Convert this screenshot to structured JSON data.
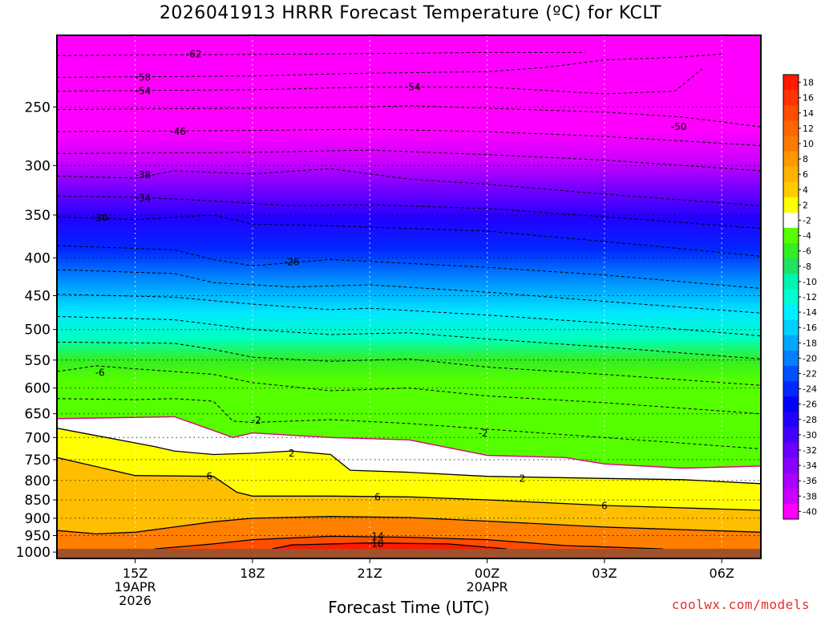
{
  "title": "2026041913 HRRR Forecast Temperature (ºC) for KCLT",
  "credit": "coolwx.com/models",
  "chart_data": {
    "type": "contour",
    "title": "2026041913 HRRR Forecast Temperature (ºC) for KCLT",
    "xlabel": "Forecast Time (UTC)",
    "ylabel": "",
    "variable": "Temperature (ºC)",
    "x_start_hour": 13,
    "x_end_hour": 31,
    "x_range_label": "2026-04-19 13Z to 2026-04-20 07Z",
    "x_ticks": [
      {
        "hour": 15,
        "label": "15Z",
        "sub1": "19APR",
        "sub2": "2026"
      },
      {
        "hour": 18,
        "label": "18Z",
        "sub1": "",
        "sub2": ""
      },
      {
        "hour": 21,
        "label": "21Z",
        "sub1": "",
        "sub2": ""
      },
      {
        "hour": 24,
        "label": "00Z",
        "sub1": "20APR",
        "sub2": ""
      },
      {
        "hour": 27,
        "label": "03Z",
        "sub1": "",
        "sub2": ""
      },
      {
        "hour": 30,
        "label": "06Z",
        "sub1": "",
        "sub2": ""
      }
    ],
    "y_ticks": [
      250,
      300,
      350,
      400,
      450,
      500,
      550,
      600,
      650,
      700,
      750,
      800,
      850,
      900,
      950,
      1000
    ],
    "y_range": [
      200,
      1020
    ],
    "y_log": true,
    "surface_pressure": 990,
    "grid": true,
    "colorbar": {
      "position": "right",
      "ticks": [
        18,
        16,
        14,
        12,
        10,
        8,
        6,
        4,
        2,
        -2,
        -4,
        -6,
        -8,
        -10,
        -12,
        -14,
        -16,
        -18,
        -20,
        -22,
        -24,
        -26,
        -28,
        -30,
        -32,
        -34,
        -36,
        -38,
        -40
      ],
      "colors_top_to_bottom": [
        "#ff1a00",
        "#ff3300",
        "#ff4d00",
        "#ff6600",
        "#ff7a00",
        "#ff9900",
        "#ffb300",
        "#ffcc00",
        "#ffff00",
        "#ffffff",
        "#55ff00",
        "#33ee22",
        "#22e066",
        "#00f5b0",
        "#00ffd0",
        "#00f0ff",
        "#00d0ff",
        "#00a8ff",
        "#0080ff",
        "#0050ff",
        "#0028ff",
        "#0000ff",
        "#2200ff",
        "#4400ff",
        "#6a00ff",
        "#8800ff",
        "#aa00ff",
        "#cc00ff",
        "#ff00ff"
      ]
    },
    "series": [
      {
        "name": "-62",
        "x": [
          13,
          20,
          24,
          26.5
        ],
        "y": [
          213,
          212,
          211,
          211
        ]
      },
      {
        "name": "-58",
        "x": [
          13,
          18,
          21,
          24,
          25.5,
          27,
          29,
          30
        ],
        "y": [
          228,
          227,
          225,
          224,
          221,
          216,
          214,
          212
        ]
      },
      {
        "name": "-54",
        "x": [
          13,
          18,
          21,
          24,
          27,
          28.8,
          29.5
        ],
        "y": [
          238,
          237,
          235,
          235,
          240,
          238,
          222
        ]
      },
      {
        "name": "-50",
        "x": [
          13,
          18,
          21,
          22,
          24,
          27,
          29,
          31
        ],
        "y": [
          252,
          251,
          250,
          249,
          251,
          254,
          258,
          266
        ]
      },
      {
        "name": "-46",
        "x": [
          13,
          18,
          21,
          24,
          27,
          31
        ],
        "y": [
          270,
          269,
          268,
          270,
          274,
          282
        ]
      },
      {
        "name": "-42",
        "x": [
          13,
          18,
          21,
          24,
          27,
          31
        ],
        "y": [
          289,
          288,
          286,
          290,
          295,
          305
        ]
      },
      {
        "name": "-38",
        "x": [
          13,
          15,
          16,
          18,
          20,
          21,
          22,
          24,
          27,
          31
        ],
        "y": [
          310,
          312,
          305,
          308,
          303,
          308,
          313,
          318,
          328,
          340
        ]
      },
      {
        "name": "-34",
        "x": [
          13,
          15,
          17,
          19,
          21,
          24,
          27,
          31
        ],
        "y": [
          330,
          331,
          335,
          340,
          339,
          343,
          352,
          365
        ]
      },
      {
        "name": "-30",
        "x": [
          13,
          15,
          17,
          18,
          20,
          24,
          27,
          31
        ],
        "y": [
          352,
          355,
          350,
          360,
          362,
          368,
          380,
          398
        ]
      },
      {
        "name": "-26",
        "x": [
          13,
          16,
          17,
          18,
          20,
          24,
          27,
          31
        ],
        "y": [
          385,
          390,
          402,
          410,
          402,
          412,
          422,
          440
        ]
      },
      {
        "name": "-22",
        "x": [
          13,
          16,
          17,
          19,
          21,
          24,
          27,
          31
        ],
        "y": [
          415,
          420,
          432,
          438,
          435,
          445,
          458,
          475
        ]
      },
      {
        "name": "-18",
        "x": [
          13,
          16,
          18,
          20,
          21,
          24,
          27,
          31
        ],
        "y": [
          448,
          452,
          462,
          470,
          468,
          478,
          490,
          510
        ]
      },
      {
        "name": "-14",
        "x": [
          13,
          16,
          18,
          20,
          22,
          24,
          27,
          31
        ],
        "y": [
          480,
          485,
          500,
          508,
          505,
          515,
          528,
          548
        ]
      },
      {
        "name": "-10",
        "x": [
          13,
          16,
          17,
          18,
          20,
          22,
          24,
          27,
          31
        ],
        "y": [
          520,
          522,
          532,
          545,
          552,
          548,
          562,
          575,
          595
        ]
      },
      {
        "name": "-6",
        "x": [
          13,
          14,
          15,
          16,
          17,
          18,
          20,
          22,
          24,
          27,
          31
        ],
        "y": [
          570,
          560,
          565,
          570,
          575,
          590,
          605,
          600,
          615,
          628,
          650
        ]
      },
      {
        "name": "-2",
        "x": [
          13,
          15,
          16,
          17,
          17.5,
          18,
          20,
          22,
          24,
          27,
          31
        ],
        "y": [
          620,
          622,
          620,
          625,
          665,
          668,
          662,
          670,
          682,
          700,
          725
        ]
      },
      {
        "name": "0",
        "color": "#e0007f",
        "x": [
          13,
          16,
          16.5,
          17.5,
          18,
          20,
          22,
          24,
          26,
          27,
          29,
          31
        ],
        "y": [
          660,
          656,
          670,
          700,
          690,
          700,
          705,
          740,
          745,
          760,
          770,
          765
        ]
      },
      {
        "name": "2",
        "x": [
          13,
          15.5,
          16,
          17,
          18,
          19,
          20,
          20.5,
          22,
          24,
          27,
          29,
          31
        ],
        "y": [
          680,
          720,
          730,
          738,
          735,
          730,
          738,
          775,
          780,
          790,
          795,
          798,
          808
        ]
      },
      {
        "name": "6",
        "x": [
          13,
          15,
          17,
          17.6,
          18,
          20,
          22,
          24,
          27,
          31
        ],
        "y": [
          745,
          788,
          790,
          830,
          840,
          840,
          842,
          850,
          865,
          878
        ]
      },
      {
        "name": "10",
        "x": [
          13,
          14,
          15,
          16,
          17,
          18,
          20,
          22,
          24,
          27,
          31
        ],
        "y": [
          935,
          945,
          940,
          925,
          910,
          900,
          895,
          898,
          908,
          925,
          940
        ]
      },
      {
        "name": "14",
        "x": [
          15.5,
          17,
          18,
          20,
          22,
          24,
          26,
          28.5
        ],
        "y": [
          990,
          975,
          962,
          952,
          955,
          962,
          980,
          990
        ]
      },
      {
        "name": "18",
        "x": [
          18.5,
          19,
          21,
          23,
          24.5
        ],
        "y": [
          990,
          978,
          972,
          975,
          990
        ]
      }
    ],
    "contour_labels": [
      {
        "text": "-62",
        "x": 16.5,
        "y": 212
      },
      {
        "text": "-58",
        "x": 15.2,
        "y": 228
      },
      {
        "text": "-54",
        "x": 15.2,
        "y": 238
      },
      {
        "text": "-54",
        "x": 22.1,
        "y": 235
      },
      {
        "text": "-50",
        "x": 28.9,
        "y": 266
      },
      {
        "text": "-46",
        "x": 16.1,
        "y": 270
      },
      {
        "text": "-38",
        "x": 15.2,
        "y": 309
      },
      {
        "text": "-34",
        "x": 15.2,
        "y": 332
      },
      {
        "text": "-30",
        "x": 14.1,
        "y": 353
      },
      {
        "text": "-26",
        "x": 19.0,
        "y": 405
      },
      {
        "text": "-6",
        "x": 14.1,
        "y": 572
      },
      {
        "text": "-2",
        "x": 18.1,
        "y": 664
      },
      {
        "text": "-2",
        "x": 23.9,
        "y": 691
      },
      {
        "text": "2",
        "x": 19.0,
        "y": 735
      },
      {
        "text": "2",
        "x": 24.9,
        "y": 795
      },
      {
        "text": "6",
        "x": 16.9,
        "y": 790
      },
      {
        "text": "6",
        "x": 21.2,
        "y": 843
      },
      {
        "text": "6",
        "x": 27.0,
        "y": 866
      },
      {
        "text": "14",
        "x": 21.2,
        "y": 952
      },
      {
        "text": "18",
        "x": 21.2,
        "y": 974
      }
    ]
  }
}
